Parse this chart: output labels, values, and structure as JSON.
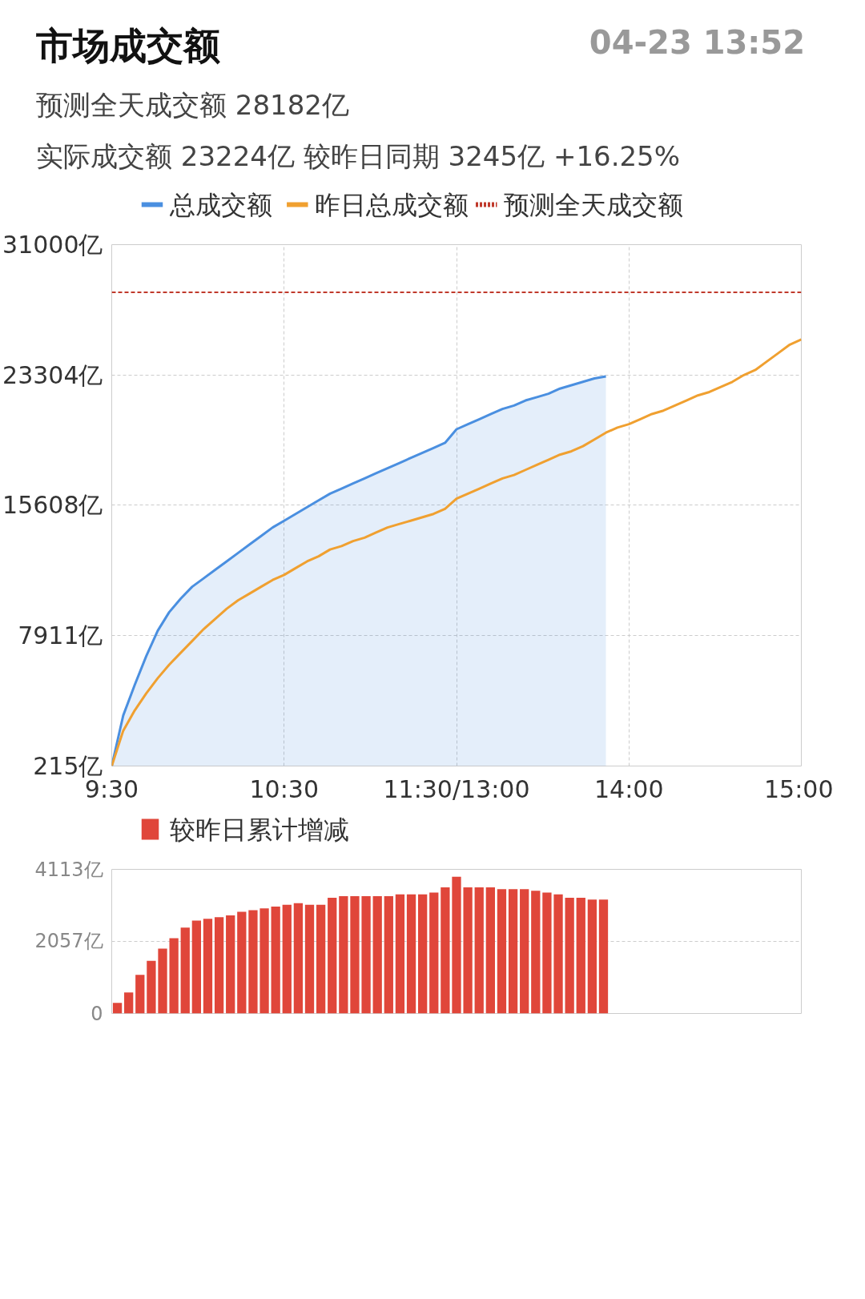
{
  "chart_data": [
    {
      "type": "line",
      "title": "市场成交额",
      "subtitle": "04-23 13:52",
      "annotations": [
        "预测全天成交额 28182亿",
        "实际成交额 23224亿 较昨日同期 3245亿 +16.25%"
      ],
      "categories": [
        "9:30",
        null,
        null,
        null,
        null,
        null,
        null,
        null,
        null,
        null,
        null,
        null,
        null,
        null,
        null,
        "10:30",
        null,
        null,
        null,
        null,
        null,
        null,
        null,
        null,
        null,
        null,
        null,
        null,
        null,
        null,
        "11:30/13:00",
        null,
        null,
        null,
        null,
        null,
        null,
        null,
        null,
        null,
        null,
        null,
        null,
        null,
        null,
        "14:00",
        null,
        null,
        null,
        null,
        null,
        null,
        null,
        null,
        null,
        null,
        null,
        null,
        null,
        null,
        "15:00"
      ],
      "series": [
        {
          "name": "总成交额",
          "type": "area",
          "color": "#4a8fe0",
          "values": [
            215,
            3200,
            5000,
            6700,
            8200,
            9300,
            10100,
            10800,
            11300,
            11800,
            12300,
            12800,
            13300,
            13800,
            14300,
            14700,
            15100,
            15500,
            15900,
            16300,
            16600,
            16900,
            17200,
            17500,
            17800,
            18100,
            18400,
            18700,
            19000,
            19300,
            20100,
            20400,
            20700,
            21000,
            21300,
            21500,
            21800,
            22000,
            22200,
            22500,
            22700,
            22900,
            23100,
            23224,
            null,
            null,
            null,
            null,
            null,
            null,
            null,
            null,
            null,
            null,
            null,
            null,
            null,
            null,
            null,
            null,
            null
          ]
        },
        {
          "name": "昨日总成交额",
          "type": "line",
          "color": "#f0a030",
          "values": [
            215,
            2300,
            3500,
            4500,
            5400,
            6200,
            6900,
            7600,
            8300,
            8900,
            9500,
            10000,
            10400,
            10800,
            11200,
            11500,
            11900,
            12300,
            12600,
            13000,
            13200,
            13500,
            13700,
            14000,
            14300,
            14500,
            14700,
            14900,
            15100,
            15400,
            16000,
            16300,
            16600,
            16900,
            17200,
            17400,
            17700,
            18000,
            18300,
            18600,
            18800,
            19100,
            19500,
            19900,
            20200,
            20400,
            20700,
            21000,
            21200,
            21500,
            21800,
            22100,
            22300,
            22600,
            22900,
            23300,
            23600,
            24100,
            24600,
            25100,
            25400
          ]
        }
      ],
      "ref_lines": [
        {
          "axis": "y",
          "value": 28182,
          "label": "预测全天成交额",
          "color": "#c0392b",
          "line_style": "dashed"
        }
      ],
      "ylim": [
        215,
        31000
      ],
      "yticks": [
        {
          "value": 215,
          "label": "215亿"
        },
        {
          "value": 7911,
          "label": "7911亿"
        },
        {
          "value": 15608,
          "label": "15608亿"
        },
        {
          "value": 23304,
          "label": "23304亿"
        },
        {
          "value": 31000,
          "label": "31000亿"
        }
      ],
      "grid": true,
      "legend": "top"
    },
    {
      "type": "bar",
      "categories": [
        null,
        null,
        null,
        null,
        null,
        null,
        null,
        null,
        null,
        null,
        null,
        null,
        null,
        null,
        null,
        null,
        null,
        null,
        null,
        null,
        null,
        null,
        null,
        null,
        null,
        null,
        null,
        null,
        null,
        null,
        null,
        null,
        null,
        null,
        null,
        null,
        null,
        null,
        null,
        null,
        null,
        null,
        null,
        null,
        null,
        null,
        null,
        null,
        null,
        null,
        null,
        null,
        null,
        null,
        null,
        null,
        null,
        null,
        null,
        null,
        null
      ],
      "series": [
        {
          "name": "较昨日累计增减",
          "color": "#e0463a",
          "values": [
            300,
            600,
            1100,
            1500,
            1850,
            2150,
            2450,
            2650,
            2700,
            2750,
            2800,
            2900,
            2950,
            3000,
            3050,
            3100,
            3150,
            3100,
            3100,
            3300,
            3350,
            3350,
            3350,
            3350,
            3350,
            3400,
            3400,
            3400,
            3450,
            3600,
            3900,
            3600,
            3600,
            3600,
            3550,
            3550,
            3550,
            3500,
            3450,
            3400,
            3300,
            3300,
            3250,
            3250,
            null,
            null,
            null,
            null,
            null,
            null,
            null,
            null,
            null,
            null,
            null,
            null,
            null,
            null,
            null,
            null,
            null
          ]
        }
      ],
      "ylim": [
        0,
        4113
      ],
      "yticks": [
        {
          "value": 0,
          "label": "0"
        },
        {
          "value": 2057,
          "label": "2057亿"
        },
        {
          "value": 4113,
          "label": "4113亿"
        }
      ],
      "grid": "y",
      "tick_labels": "y",
      "legend": "top"
    }
  ]
}
